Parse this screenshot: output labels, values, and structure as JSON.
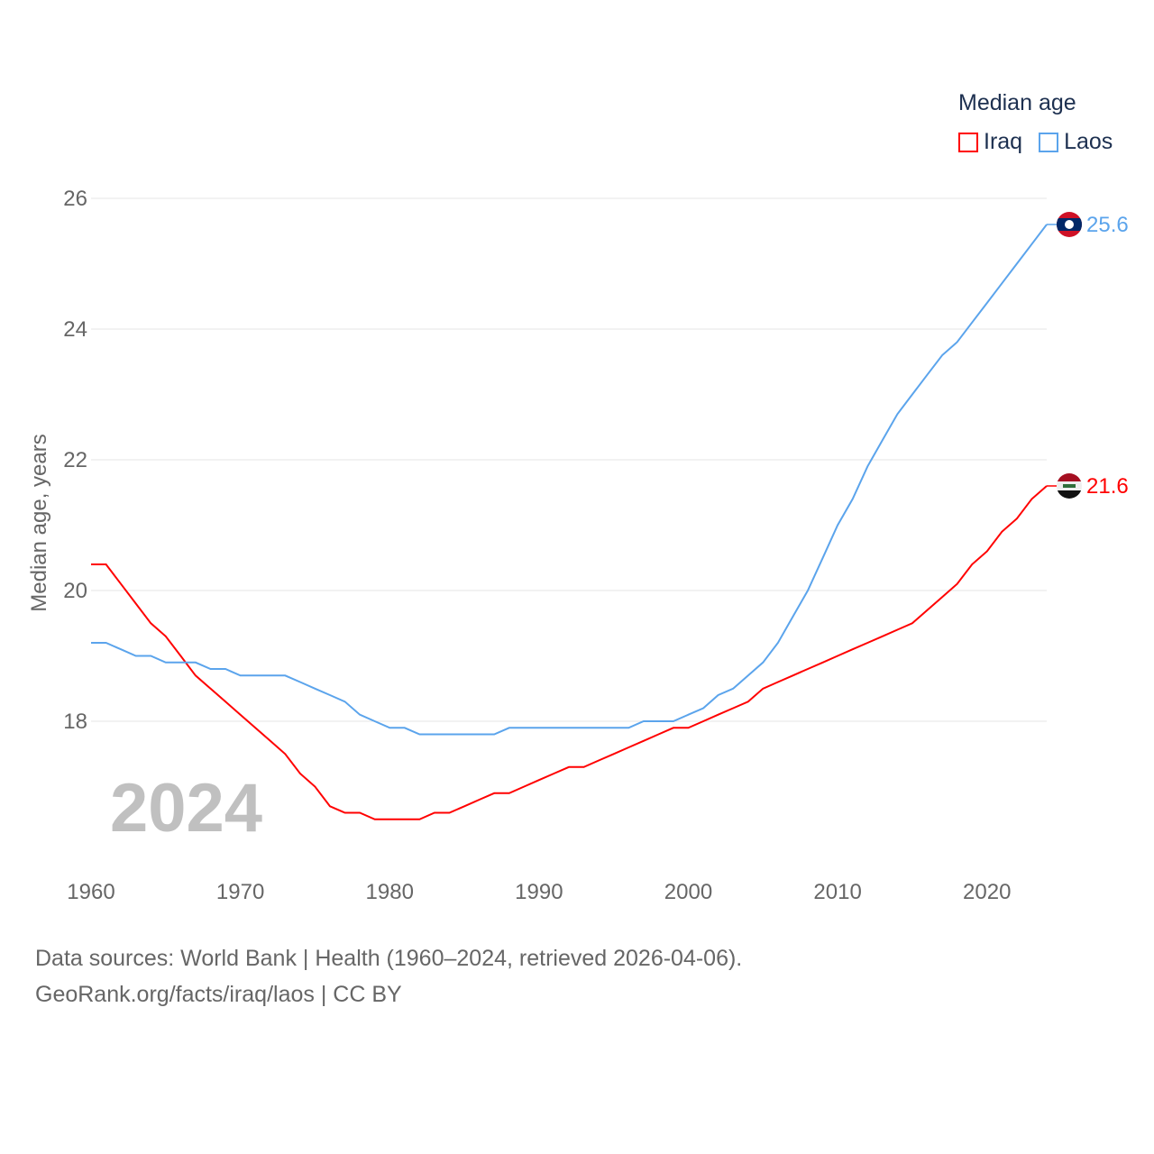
{
  "chart_data": {
    "type": "line",
    "title": "",
    "ylabel": "Median age, years",
    "xlabel": "",
    "xlim": [
      1960,
      2024
    ],
    "ylim": [
      16,
      26.5
    ],
    "yticks": [
      18,
      20,
      22,
      24,
      26
    ],
    "xticks": [
      1960,
      1970,
      1980,
      1990,
      2000,
      2010,
      2020
    ],
    "grid": true,
    "legend_title": "Median age",
    "legend_position": "top-right",
    "year_label": "2024",
    "x": [
      1960,
      1961,
      1962,
      1963,
      1964,
      1965,
      1966,
      1967,
      1968,
      1969,
      1970,
      1971,
      1972,
      1973,
      1974,
      1975,
      1976,
      1977,
      1978,
      1979,
      1980,
      1981,
      1982,
      1983,
      1984,
      1985,
      1986,
      1987,
      1988,
      1989,
      1990,
      1991,
      1992,
      1993,
      1994,
      1995,
      1996,
      1997,
      1998,
      1999,
      2000,
      2001,
      2002,
      2003,
      2004,
      2005,
      2006,
      2007,
      2008,
      2009,
      2010,
      2011,
      2012,
      2013,
      2014,
      2015,
      2016,
      2017,
      2018,
      2019,
      2020,
      2021,
      2022,
      2023,
      2024
    ],
    "series": [
      {
        "name": "Iraq",
        "color": "#ff0000",
        "end_label": "21.6",
        "flag": "iraq-flag",
        "values": [
          20.4,
          20.4,
          20.1,
          19.8,
          19.5,
          19.3,
          19.0,
          18.7,
          18.5,
          18.3,
          18.1,
          17.9,
          17.7,
          17.5,
          17.2,
          17.0,
          16.7,
          16.6,
          16.6,
          16.5,
          16.5,
          16.5,
          16.5,
          16.6,
          16.6,
          16.7,
          16.8,
          16.9,
          16.9,
          17.0,
          17.1,
          17.2,
          17.3,
          17.3,
          17.4,
          17.5,
          17.6,
          17.7,
          17.8,
          17.9,
          17.9,
          18.0,
          18.1,
          18.2,
          18.3,
          18.5,
          18.6,
          18.7,
          18.8,
          18.9,
          19.0,
          19.1,
          19.2,
          19.3,
          19.4,
          19.5,
          19.7,
          19.9,
          20.1,
          20.4,
          20.6,
          20.9,
          21.1,
          21.4,
          21.6
        ]
      },
      {
        "name": "Laos",
        "color": "#5ba4ec",
        "end_label": "25.6",
        "flag": "laos-flag",
        "values": [
          19.2,
          19.2,
          19.1,
          19.0,
          19.0,
          18.9,
          18.9,
          18.9,
          18.8,
          18.8,
          18.7,
          18.7,
          18.7,
          18.7,
          18.6,
          18.5,
          18.4,
          18.3,
          18.1,
          18.0,
          17.9,
          17.9,
          17.8,
          17.8,
          17.8,
          17.8,
          17.8,
          17.8,
          17.9,
          17.9,
          17.9,
          17.9,
          17.9,
          17.9,
          17.9,
          17.9,
          17.9,
          18.0,
          18.0,
          18.0,
          18.1,
          18.2,
          18.4,
          18.5,
          18.7,
          18.9,
          19.2,
          19.6,
          20.0,
          20.5,
          21.0,
          21.4,
          21.9,
          22.3,
          22.7,
          23.0,
          23.3,
          23.6,
          23.8,
          24.1,
          24.4,
          24.7,
          25.0,
          25.3,
          25.6
        ]
      }
    ]
  },
  "footer": {
    "line1": "Data sources: World Bank | Health (1960–2024, retrieved 2026-04-06).",
    "line2": "GeoRank.org/facts/iraq/laos | CC BY"
  }
}
